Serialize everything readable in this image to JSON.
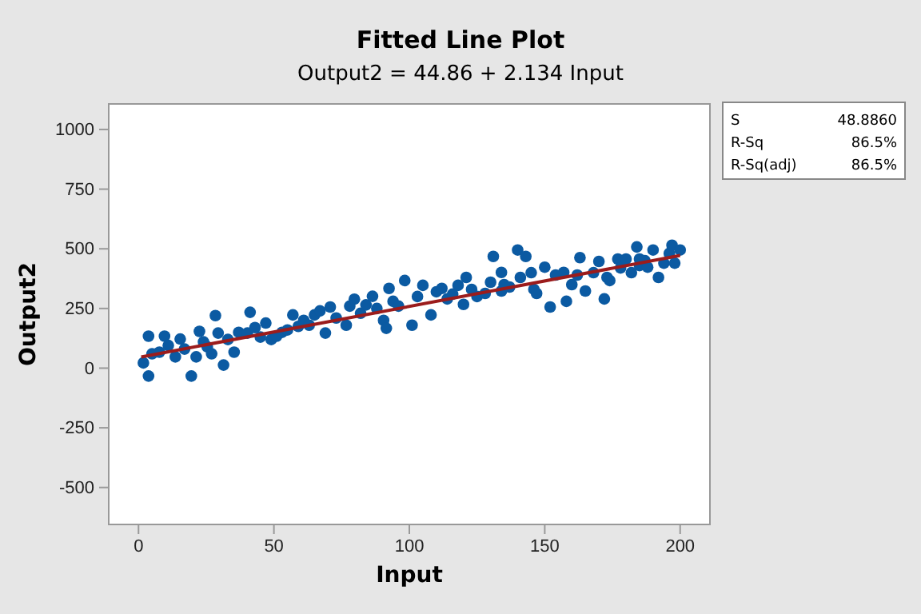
{
  "chart_data": {
    "type": "scatter",
    "title": "Fitted Line Plot",
    "subtitle": "Output2 = 44.86 + 2.134 Input",
    "xlabel": "Input",
    "ylabel": "Output2",
    "xlim": [
      -11,
      211
    ],
    "xticks": [
      0,
      50,
      100,
      150,
      200
    ],
    "ylim": [
      -655,
      1107
    ],
    "yticks": [
      -500,
      -250,
      0,
      250,
      500,
      750,
      1000
    ],
    "grid": false,
    "marker": "circle",
    "annotations": [
      "S 48.8860",
      "R-Sq 86.5%",
      "R-Sq(adj) 86.5%"
    ],
    "series": [
      {
        "color": "#0b5aa2",
        "x": [
          1.8,
          3.7,
          3.7,
          5,
          7.7,
          9.6,
          11,
          13.6,
          15.4,
          17,
          19.5,
          21.3,
          22.5,
          24,
          25.4,
          27,
          28.4,
          29.4,
          31.4,
          33,
          35.3,
          37,
          40.2,
          41.2,
          43,
          45,
          47,
          49,
          51,
          53,
          55,
          57,
          59,
          61,
          63,
          65,
          67,
          69,
          70.8,
          73,
          76.7,
          78,
          79.7,
          82,
          84,
          86.4,
          88,
          90.5,
          91.5,
          92.5,
          94,
          96,
          98.3,
          101,
          103,
          105,
          108,
          110,
          112,
          114,
          116,
          118,
          120,
          121,
          123,
          125,
          128,
          130,
          131,
          134,
          134,
          135,
          137,
          140,
          141,
          143,
          145,
          146,
          147,
          150,
          152,
          154,
          157,
          158,
          160,
          162,
          163,
          165,
          168,
          170,
          172,
          173,
          174,
          177,
          178,
          180,
          182,
          184,
          185,
          185,
          187,
          188,
          190,
          192,
          194,
          196,
          197,
          198,
          200
        ],
        "values": [
          22,
          -33,
          134,
          60,
          67,
          134,
          95,
          47,
          122,
          80,
          -33,
          47,
          154,
          110,
          89,
          60,
          220,
          147,
          13,
          120,
          67,
          150,
          147,
          234,
          170,
          130,
          189,
          120,
          134,
          150,
          160,
          223,
          175,
          200,
          180,
          223,
          240,
          147,
          256,
          210,
          180,
          260,
          289,
          230,
          265,
          301,
          250,
          200,
          167,
          334,
          280,
          260,
          367,
          180,
          300,
          347,
          223,
          320,
          334,
          290,
          310,
          347,
          267,
          380,
          330,
          300,
          313,
          360,
          468,
          323,
          401,
          350,
          340,
          495,
          380,
          468,
          400,
          330,
          313,
          423,
          256,
          390,
          401,
          280,
          350,
          390,
          463,
          323,
          400,
          447,
          290,
          380,
          367,
          457,
          420,
          457,
          400,
          508,
          430,
          457,
          450,
          423,
          495,
          380,
          440,
          481,
          515,
          440,
          495
        ]
      },
      {
        "type": "line",
        "color": "#9b1c1c",
        "x": [
          1,
          200
        ],
        "values": [
          47,
          472
        ],
        "marker": "none",
        "line_style": "solid"
      }
    ]
  }
}
